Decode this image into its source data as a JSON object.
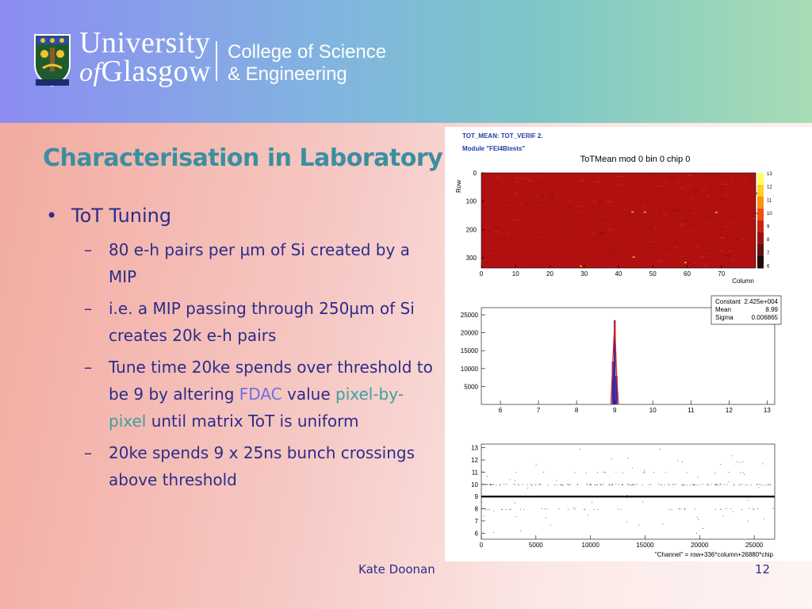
{
  "header": {
    "university_line1": "University",
    "university_line2_of": "of",
    "university_line2": "Glasgow",
    "college_line1": "College of Science",
    "college_line2": "& Engineering",
    "crest_motto": "VIA VERITAS VITA"
  },
  "slide": {
    "title": "Characterisation in Laboratory",
    "bullet": "ToT Tuning",
    "subbullets": [
      "80 e-h pairs per µm of Si created by a MIP",
      "i.e. a MIP passing through 250µm of Si creates 20k e-h pairs"
    ],
    "sub3_a": "Tune time 20ke spends over threshold to be 9 by altering ",
    "sub3_fdac": "FDAC",
    "sub3_b": " value ",
    "sub3_pbp": "pixel-by-pixel",
    "sub3_c": " until matrix ToT is uniform",
    "sub4": "20ke spends 9 x 25ns bunch crossings above threshold",
    "dash": "–",
    "dot": "•"
  },
  "footer": {
    "author": "Kate Doonan",
    "page": "12"
  },
  "colors": {
    "title": "#3a8fa0",
    "text": "#2c2c8a",
    "fdac": "#6f6fe6",
    "pixel": "#3aa0a0"
  },
  "chart_data": [
    {
      "type": "heatmap",
      "header1": "TOT_MEAN: TOT_VERIF 2.",
      "header2": "Module \"FEI4Btests\"",
      "title": "ToTMean mod 0 bin 0 chip 0",
      "xlabel": "Column",
      "ylabel": "Row",
      "x_ticks": [
        "0",
        "10",
        "20",
        "30",
        "40",
        "50",
        "60",
        "70"
      ],
      "y_ticks": [
        "0",
        "100",
        "200",
        "300"
      ],
      "colorbar_ticks": [
        "13",
        "12",
        "11",
        "10",
        "9",
        "8",
        "7",
        "6"
      ],
      "xlim": [
        0,
        80
      ],
      "ylim": [
        0,
        336
      ]
    },
    {
      "type": "bar",
      "x_ticks": [
        "6",
        "7",
        "8",
        "9",
        "10",
        "11",
        "12",
        "13"
      ],
      "y_ticks": [
        "25000",
        "20000",
        "15000",
        "10000",
        "5000"
      ],
      "xlim": [
        5.5,
        13.2
      ],
      "ylim": [
        0,
        27000
      ],
      "x": [
        8.9,
        8.95,
        9.0,
        9.05,
        9.1
      ],
      "values": [
        0,
        12000,
        23500,
        8000,
        0
      ],
      "stats": {
        "labels": [
          "Constant",
          "Mean",
          "Sigma"
        ],
        "values": [
          "2.425e+004",
          "8.99",
          "0.006865"
        ]
      }
    },
    {
      "type": "scatter",
      "x_ticks": [
        "0",
        "5000",
        "10000",
        "15000",
        "20000",
        "25000"
      ],
      "y_ticks": [
        "13",
        "12",
        "11",
        "10",
        "9",
        "8",
        "7",
        "6"
      ],
      "xlabel": "\"Channel\" = row+336*column+26880*chip",
      "xlim": [
        0,
        26880
      ],
      "ylim": [
        5.5,
        13.3
      ]
    }
  ]
}
